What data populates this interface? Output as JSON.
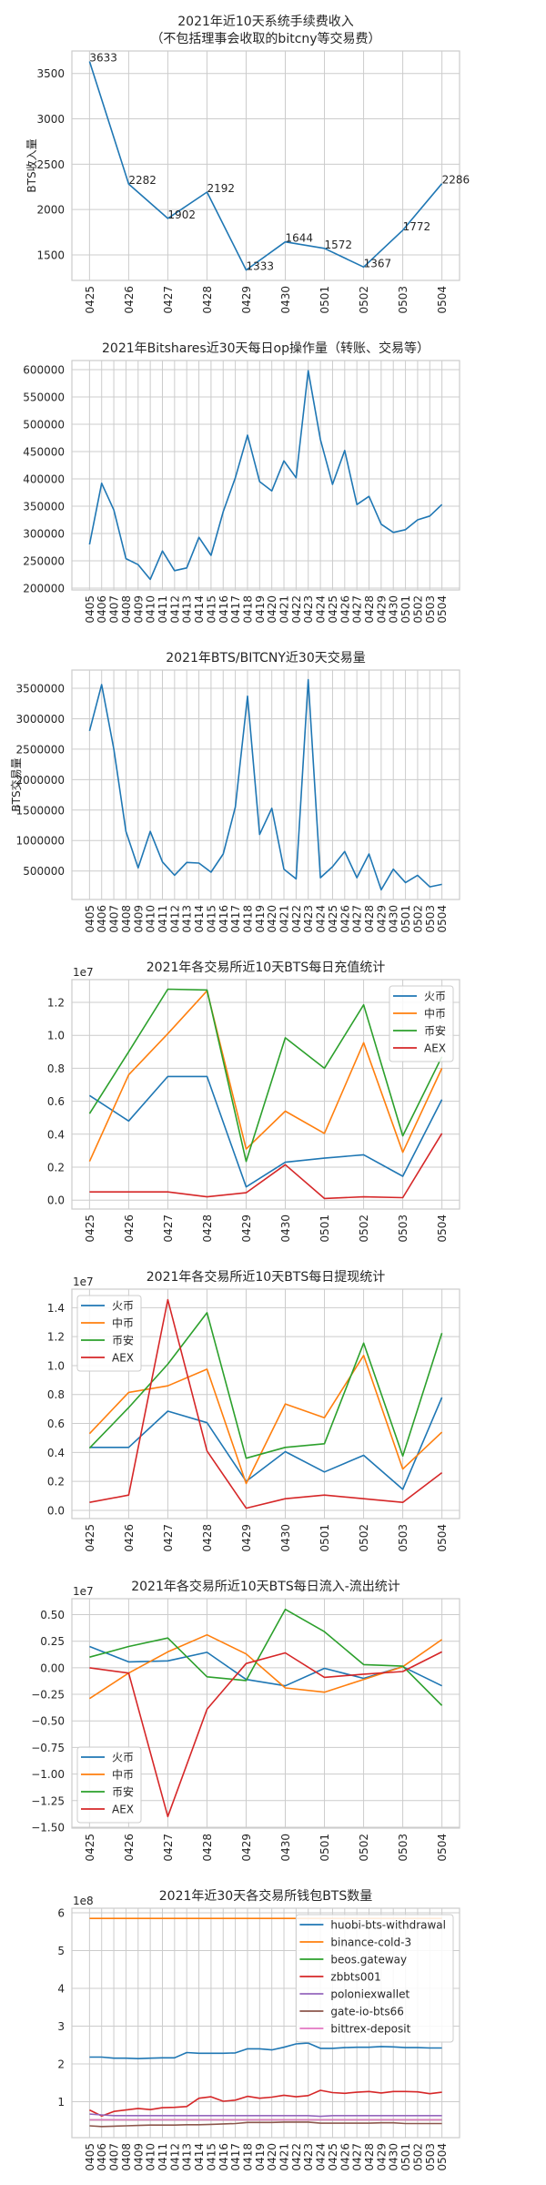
{
  "chart_data": [
    {
      "type": "line",
      "title": [
        "2021年近10天系统手续费收入",
        "（不包括理事会收取的bitcny等交易费）"
      ],
      "ylabel": "BTS收入量",
      "offset_label": "",
      "categories": [
        "0425",
        "0426",
        "0427",
        "0428",
        "0429",
        "0430",
        "0501",
        "0502",
        "0503",
        "0504"
      ],
      "ylim": [
        1219,
        3748
      ],
      "yticks": [
        1500,
        2000,
        2500,
        3000,
        3500
      ],
      "ytick_labels": [
        "1500",
        "2000",
        "2500",
        "3000",
        "3500"
      ],
      "annotate": true,
      "legend": null,
      "series": [
        {
          "name": "",
          "color": "#1f77b4",
          "values": [
            3633,
            2282,
            1902,
            2192,
            1333,
            1644,
            1572,
            1367,
            1772,
            2286
          ]
        }
      ]
    },
    {
      "type": "line",
      "title": [
        "2021年Bitshares近30天每日op操作量（转账、交易等）"
      ],
      "ylabel": "",
      "offset_label": "",
      "categories": [
        "0405",
        "0406",
        "0407",
        "0408",
        "0409",
        "0410",
        "0411",
        "0412",
        "0413",
        "0414",
        "0415",
        "0416",
        "0417",
        "0418",
        "0419",
        "0420",
        "0421",
        "0422",
        "0423",
        "0424",
        "0425",
        "0426",
        "0427",
        "0428",
        "0429",
        "0430",
        "0501",
        "0502",
        "0503",
        "0504"
      ],
      "ylim": [
        196700,
        616700
      ],
      "yticks": [
        200000,
        250000,
        300000,
        350000,
        400000,
        450000,
        500000,
        550000,
        600000
      ],
      "ytick_labels": [
        "200000",
        "250000",
        "300000",
        "350000",
        "400000",
        "450000",
        "500000",
        "550000",
        "600000"
      ],
      "annotate": false,
      "legend": null,
      "series": [
        {
          "name": "",
          "color": "#1f77b4",
          "values": [
            280000,
            392000,
            343000,
            254000,
            243000,
            216000,
            268000,
            232000,
            237000,
            293000,
            260000,
            340000,
            402000,
            480000,
            395000,
            378000,
            433000,
            402000,
            598000,
            472000,
            390000,
            452000,
            353000,
            368000,
            317000,
            302000,
            307000,
            325000,
            332000,
            353000
          ]
        }
      ]
    },
    {
      "type": "line",
      "title": [
        "2021年BTS/BITCNY近30天交易量"
      ],
      "ylabel": "BTS交易量",
      "offset_label": "",
      "categories": [
        "0405",
        "0406",
        "0407",
        "0408",
        "0409",
        "0410",
        "0411",
        "0412",
        "0413",
        "0414",
        "0415",
        "0416",
        "0417",
        "0418",
        "0419",
        "0420",
        "0421",
        "0422",
        "0423",
        "0424",
        "0425",
        "0426",
        "0427",
        "0428",
        "0429",
        "0430",
        "0501",
        "0502",
        "0503",
        "0504"
      ],
      "ylim": [
        32000,
        3799000
      ],
      "yticks": [
        500000,
        1000000,
        1500000,
        2000000,
        2500000,
        3000000,
        3500000
      ],
      "ytick_labels": [
        "500000",
        "1000000",
        "1500000",
        "2000000",
        "2500000",
        "3000000",
        "3500000"
      ],
      "annotate": false,
      "legend": null,
      "series": [
        {
          "name": "",
          "color": "#1f77b4",
          "values": [
            2800000,
            3560000,
            2500000,
            1150000,
            550000,
            1150000,
            650000,
            430000,
            640000,
            630000,
            480000,
            780000,
            1550000,
            3370000,
            1100000,
            1530000,
            530000,
            370000,
            3640000,
            390000,
            570000,
            820000,
            390000,
            780000,
            190000,
            530000,
            310000,
            430000,
            240000,
            280000
          ]
        }
      ]
    },
    {
      "type": "line",
      "title": [
        "2021年各交易所近10天BTS每日充值统计"
      ],
      "ylabel": "",
      "offset_label": "1e7",
      "categories": [
        "0425",
        "0426",
        "0427",
        "0428",
        "0429",
        "0430",
        "0501",
        "0502",
        "0503",
        "0504"
      ],
      "ylim": [
        -0.054,
        1.338
      ],
      "yticks": [
        0,
        0.2,
        0.4,
        0.6,
        0.8,
        1.0,
        1.2
      ],
      "ytick_labels": [
        "0.0",
        "0.2",
        "0.4",
        "0.6",
        "0.8",
        "1.0",
        "1.2"
      ],
      "annotate": false,
      "legend": "upper-right",
      "series": [
        {
          "name": "火币",
          "color": "#1f77b4",
          "values": [
            0.635,
            0.48,
            0.75,
            0.75,
            0.08,
            0.23,
            0.255,
            0.275,
            0.145,
            0.61
          ]
        },
        {
          "name": "中币",
          "color": "#ff7f0e",
          "values": [
            0.235,
            0.76,
            1.01,
            1.27,
            0.31,
            0.54,
            0.405,
            0.955,
            0.29,
            0.8
          ]
        },
        {
          "name": "币安",
          "color": "#2ca02c",
          "values": [
            0.525,
            0.9,
            1.28,
            1.275,
            0.235,
            0.985,
            0.8,
            1.185,
            0.39,
            0.87
          ]
        },
        {
          "name": "AEX",
          "color": "#d62728",
          "values": [
            0.05,
            0.05,
            0.05,
            0.02,
            0.045,
            0.215,
            0.01,
            0.02,
            0.015,
            0.405
          ]
        }
      ]
    },
    {
      "type": "line",
      "title": [
        "2021年各交易所近10天BTS每日提现统计"
      ],
      "ylabel": "",
      "offset_label": "1e7",
      "categories": [
        "0425",
        "0426",
        "0427",
        "0428",
        "0429",
        "0430",
        "0501",
        "0502",
        "0503",
        "0504"
      ],
      "ylim": [
        -0.057,
        1.528
      ],
      "yticks": [
        0,
        0.2,
        0.4,
        0.6,
        0.8,
        1.0,
        1.2,
        1.4
      ],
      "ytick_labels": [
        "0.0",
        "0.2",
        "0.4",
        "0.6",
        "0.8",
        "1.0",
        "1.2",
        "1.4"
      ],
      "annotate": false,
      "legend": "upper-left",
      "series": [
        {
          "name": "火币",
          "color": "#1f77b4",
          "values": [
            0.435,
            0.435,
            0.685,
            0.605,
            0.2,
            0.405,
            0.265,
            0.38,
            0.145,
            0.78
          ]
        },
        {
          "name": "中币",
          "color": "#ff7f0e",
          "values": [
            0.53,
            0.815,
            0.86,
            0.975,
            0.185,
            0.735,
            0.64,
            1.07,
            0.285,
            0.54
          ]
        },
        {
          "name": "币安",
          "color": "#2ca02c",
          "values": [
            0.43,
            0.71,
            1.01,
            1.365,
            0.36,
            0.435,
            0.46,
            1.155,
            0.375,
            1.225
          ]
        },
        {
          "name": "AEX",
          "color": "#d62728",
          "values": [
            0.055,
            0.105,
            1.455,
            0.41,
            0.015,
            0.08,
            0.105,
            0.08,
            0.055,
            0.26
          ]
        }
      ]
    },
    {
      "type": "line",
      "title": [
        "2021年各交易所近10天BTS每日流入-流出统计"
      ],
      "ylabel": "",
      "offset_label": "1e7",
      "categories": [
        "0425",
        "0426",
        "0427",
        "0428",
        "0429",
        "0430",
        "0501",
        "0502",
        "0503",
        "0504"
      ],
      "ylim": [
        -1.509,
        0.65
      ],
      "yticks": [
        -1.5,
        -1.25,
        -1.0,
        -0.75,
        -0.5,
        -0.25,
        0,
        0.25,
        0.5
      ],
      "ytick_labels": [
        "−1.50",
        "−1.25",
        "−1.00",
        "−0.75",
        "−0.50",
        "−0.25",
        "0.00",
        "0.25",
        "0.50"
      ],
      "annotate": false,
      "legend": "lower-left",
      "series": [
        {
          "name": "火币",
          "color": "#1f77b4",
          "values": [
            0.2,
            0.055,
            0.065,
            0.145,
            -0.11,
            -0.17,
            -0.005,
            -0.1,
            0.01,
            -0.17
          ]
        },
        {
          "name": "中币",
          "color": "#ff7f0e",
          "values": [
            -0.29,
            -0.05,
            0.15,
            0.31,
            0.13,
            -0.19,
            -0.23,
            -0.11,
            0.01,
            0.265
          ]
        },
        {
          "name": "币安",
          "color": "#2ca02c",
          "values": [
            0.1,
            0.2,
            0.28,
            -0.085,
            -0.12,
            0.55,
            0.34,
            0.03,
            0.015,
            -0.355
          ]
        },
        {
          "name": "AEX",
          "color": "#d62728",
          "values": [
            0.0,
            -0.05,
            -1.4,
            -0.39,
            0.04,
            0.14,
            -0.09,
            -0.06,
            -0.035,
            0.15
          ]
        }
      ]
    },
    {
      "type": "line",
      "title": [
        "2021年近30天各交易所钱包BTS数量"
      ],
      "ylabel": "",
      "offset_label": "1e8",
      "categories": [
        "0405",
        "0406",
        "0407",
        "0408",
        "0409",
        "0410",
        "0411",
        "0412",
        "0413",
        "0414",
        "0415",
        "0416",
        "0417",
        "0418",
        "0419",
        "0420",
        "0421",
        "0422",
        "0423",
        "0424",
        "0425",
        "0426",
        "0427",
        "0428",
        "0429",
        "0430",
        "0501",
        "0502",
        "0503",
        "0504"
      ],
      "ylim": [
        0.047,
        6.12
      ],
      "yticks": [
        1,
        2,
        3,
        4,
        5,
        6
      ],
      "ytick_labels": [
        "1",
        "2",
        "3",
        "4",
        "5",
        "6"
      ],
      "annotate": false,
      "legend": "upper-right",
      "series": [
        {
          "name": "huobi-bts-withdrawal",
          "color": "#1f77b4",
          "values": [
            2.18,
            2.18,
            2.15,
            2.15,
            2.14,
            2.15,
            2.16,
            2.16,
            2.3,
            2.28,
            2.28,
            2.28,
            2.29,
            2.4,
            2.4,
            2.37,
            2.44,
            2.53,
            2.55,
            2.41,
            2.41,
            2.43,
            2.44,
            2.44,
            2.46,
            2.45,
            2.43,
            2.43,
            2.42,
            2.42
          ]
        },
        {
          "name": "binance-cold-3",
          "color": "#ff7f0e",
          "values": [
            5.85,
            5.85,
            5.85,
            5.85,
            5.85,
            5.85,
            5.85,
            5.85,
            5.85,
            5.85,
            5.85,
            5.85,
            5.85,
            5.85,
            5.85,
            5.85,
            5.85,
            5.85,
            5.85,
            5.85,
            5.85,
            5.85,
            5.85,
            5.85,
            5.85,
            5.85,
            5.85,
            5.85,
            5.85,
            5.85
          ]
        },
        {
          "name": "beos.gateway",
          "color": "#2ca02c",
          "values": [
            0.52,
            0.52,
            0.52,
            0.52,
            0.52,
            0.52,
            0.52,
            0.52,
            0.52,
            0.52,
            0.52,
            0.52,
            0.52,
            0.52,
            0.52,
            0.52,
            0.52,
            0.52,
            0.52,
            0.52,
            0.52,
            0.52,
            0.52,
            0.52,
            0.52,
            0.52,
            0.52,
            0.52,
            0.52,
            0.52
          ]
        },
        {
          "name": "zbbts001",
          "color": "#d62728",
          "values": [
            0.78,
            0.62,
            0.74,
            0.78,
            0.82,
            0.79,
            0.84,
            0.85,
            0.87,
            1.09,
            1.13,
            1.01,
            1.04,
            1.14,
            1.09,
            1.12,
            1.17,
            1.13,
            1.16,
            1.3,
            1.24,
            1.22,
            1.25,
            1.27,
            1.23,
            1.27,
            1.27,
            1.26,
            1.21,
            1.25
          ]
        },
        {
          "name": "poloniexwallet",
          "color": "#9467bd",
          "values": [
            0.67,
            0.65,
            0.63,
            0.63,
            0.63,
            0.63,
            0.63,
            0.63,
            0.63,
            0.63,
            0.63,
            0.63,
            0.63,
            0.63,
            0.63,
            0.63,
            0.63,
            0.63,
            0.63,
            0.61,
            0.63,
            0.63,
            0.63,
            0.63,
            0.63,
            0.63,
            0.63,
            0.63,
            0.63,
            0.63
          ]
        },
        {
          "name": "gate-io-bts66",
          "color": "#8c564b",
          "values": [
            0.36,
            0.34,
            0.35,
            0.36,
            0.37,
            0.38,
            0.38,
            0.38,
            0.39,
            0.39,
            0.4,
            0.41,
            0.42,
            0.45,
            0.45,
            0.45,
            0.46,
            0.46,
            0.46,
            0.43,
            0.43,
            0.43,
            0.43,
            0.43,
            0.44,
            0.44,
            0.42,
            0.42,
            0.42,
            0.42
          ]
        },
        {
          "name": "bittrex-deposit",
          "color": "#e377c2",
          "values": [
            0.52,
            0.52,
            0.52,
            0.52,
            0.52,
            0.52,
            0.52,
            0.52,
            0.52,
            0.52,
            0.52,
            0.52,
            0.52,
            0.52,
            0.52,
            0.52,
            0.52,
            0.52,
            0.52,
            0.52,
            0.52,
            0.52,
            0.52,
            0.52,
            0.52,
            0.52,
            0.52,
            0.52,
            0.52,
            0.52
          ]
        }
      ]
    }
  ]
}
